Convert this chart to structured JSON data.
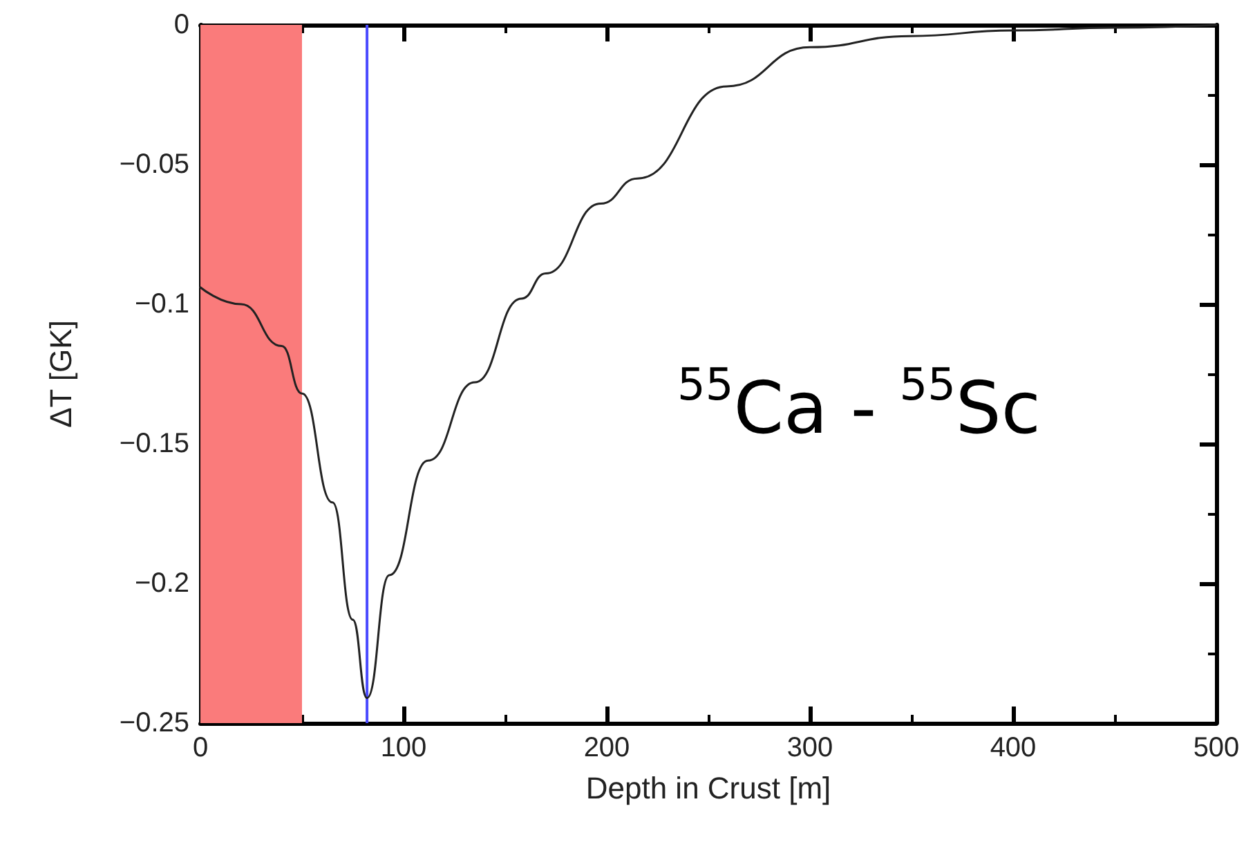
{
  "chart_data": {
    "type": "line",
    "xlabel": "Depth in Crust [m]",
    "ylabel": "ΔT [GK]",
    "x": [
      0,
      20,
      40,
      50,
      65,
      75,
      82,
      93,
      112,
      135,
      158,
      170,
      197,
      215,
      259,
      300,
      349,
      400,
      450,
      500
    ],
    "series": [
      {
        "color": "#222222",
        "values": [
          -0.094,
          -0.1,
          -0.115,
          -0.132,
          -0.171,
          -0.213,
          -0.241,
          -0.197,
          -0.156,
          -0.128,
          -0.098,
          -0.089,
          -0.064,
          -0.055,
          -0.022,
          -0.008,
          -0.004,
          -0.002,
          -0.001,
          0
        ]
      }
    ],
    "xlim": [
      0,
      500
    ],
    "xticks": [
      0,
      100,
      200,
      300,
      400,
      500
    ],
    "ylim": [
      -0.25,
      0
    ],
    "yticks": [
      {
        "value": -0.25,
        "label": "−0.25"
      },
      {
        "value": -0.2,
        "label": "−0.2"
      },
      {
        "value": -0.15,
        "label": "−0.15"
      },
      {
        "value": -0.1,
        "label": "−0.1"
      },
      {
        "value": -0.05,
        "label": "−0.05"
      },
      {
        "value": 0,
        "label": "0"
      }
    ],
    "bands": [
      {
        "axis": "x",
        "from": 0,
        "to": 50,
        "color": "#fa7b7b"
      }
    ],
    "ref_lines": [
      {
        "axis": "x",
        "value": 82,
        "color": "#4b4bff",
        "line_style": "solid"
      }
    ],
    "annotations": [
      "$^{55}$Ca - $^{55}$Sc"
    ],
    "grid": false,
    "marker": "none",
    "line_style": "solid"
  }
}
